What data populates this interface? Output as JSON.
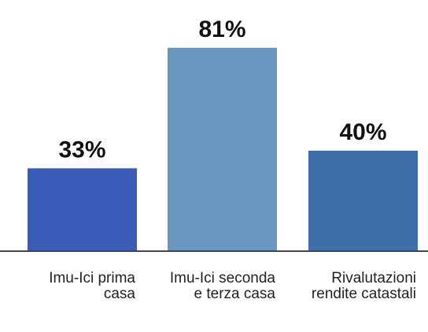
{
  "chart_data": {
    "type": "bar",
    "categories": [
      "Imu-Ici prima casa",
      "Imu-Ici seconda e terza casa",
      "Rivalutazioni rendite catastali"
    ],
    "values": [
      33,
      81,
      40
    ],
    "value_labels": [
      "33%",
      "81%",
      "40%"
    ],
    "colors": [
      "#3a5cb8",
      "#6b96bf",
      "#3f6eaa"
    ],
    "ylim": [
      0,
      100
    ]
  }
}
